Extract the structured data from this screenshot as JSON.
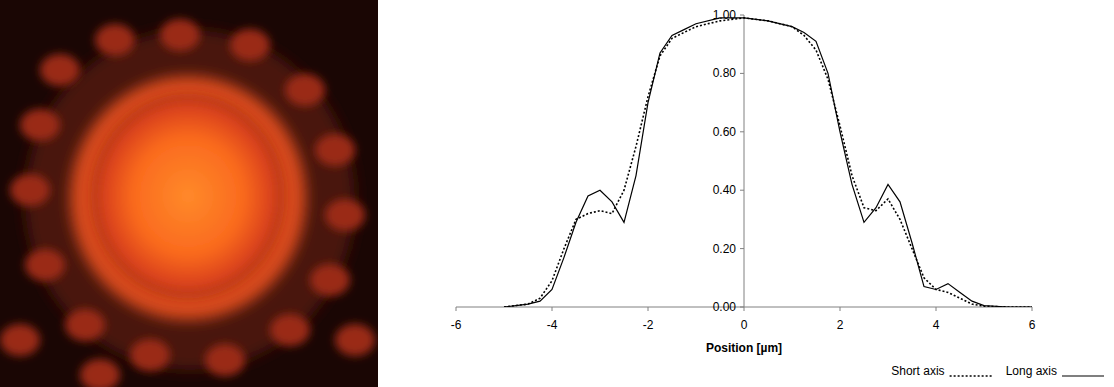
{
  "chart_data": {
    "type": "line",
    "xlabel": "Position [µm]",
    "x": [
      -5,
      -4.75,
      -4.5,
      -4.25,
      -4,
      -3.75,
      -3.5,
      -3.25,
      -3,
      -2.75,
      -2.5,
      -2.25,
      -2,
      -1.75,
      -1.5,
      -1.25,
      -1,
      -0.5,
      0,
      0.5,
      1,
      1.25,
      1.5,
      1.75,
      2,
      2.25,
      2.5,
      2.75,
      3,
      3.25,
      3.5,
      3.75,
      4,
      4.25,
      4.5,
      4.75,
      5,
      5.5,
      6
    ],
    "series": [
      {
        "name": "Short axis",
        "color": "#000000",
        "line_style": "dotted",
        "values": [
          0,
          0.005,
          0.01,
          0.03,
          0.09,
          0.2,
          0.3,
          0.32,
          0.33,
          0.32,
          0.4,
          0.55,
          0.72,
          0.86,
          0.92,
          0.94,
          0.96,
          0.98,
          0.99,
          0.98,
          0.96,
          0.93,
          0.88,
          0.78,
          0.62,
          0.45,
          0.34,
          0.33,
          0.37,
          0.3,
          0.2,
          0.1,
          0.06,
          0.05,
          0.03,
          0.01,
          0.003,
          0,
          0
        ]
      },
      {
        "name": "Long axis",
        "color": "#000000",
        "line_style": "solid",
        "values": [
          0,
          0.005,
          0.01,
          0.02,
          0.06,
          0.17,
          0.29,
          0.38,
          0.4,
          0.36,
          0.29,
          0.45,
          0.7,
          0.87,
          0.93,
          0.95,
          0.97,
          0.99,
          0.99,
          0.98,
          0.96,
          0.94,
          0.91,
          0.8,
          0.6,
          0.42,
          0.29,
          0.34,
          0.42,
          0.36,
          0.22,
          0.07,
          0.06,
          0.08,
          0.05,
          0.02,
          0.005,
          0,
          0
        ]
      }
    ],
    "xlim": [
      -6,
      6
    ],
    "xticks": [
      -6,
      -4,
      -2,
      0,
      2,
      4,
      6
    ],
    "ylim": [
      0,
      1
    ],
    "yticks": [
      {
        "value": 0,
        "label": "0.00"
      },
      {
        "value": 0.2,
        "label": "0.20"
      },
      {
        "value": 0.4,
        "label": "0.40"
      },
      {
        "value": 0.6,
        "label": "0.60"
      },
      {
        "value": 0.8,
        "label": "0.80"
      },
      {
        "value": 1,
        "label": "1.00"
      }
    ],
    "grid": false,
    "legend": "bottom-right"
  }
}
